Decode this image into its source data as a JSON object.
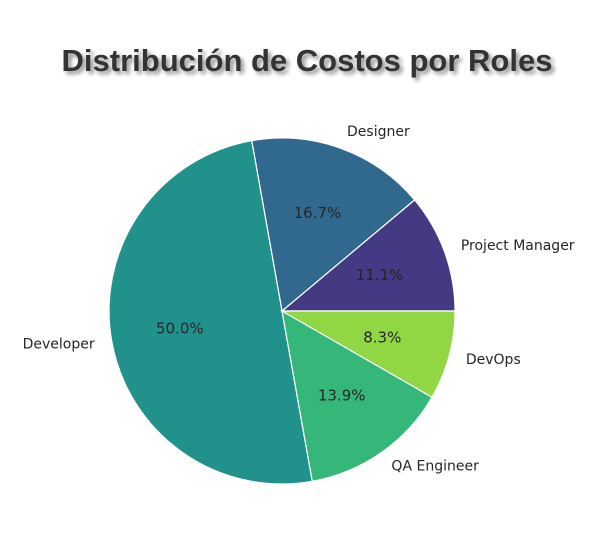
{
  "chart_data": {
    "type": "pie",
    "title": "Distribución de Costos por Roles",
    "categories": [
      "Project Manager",
      "Designer",
      "Developer",
      "QA Engineer",
      "DevOps"
    ],
    "values": [
      11.1,
      16.7,
      50.0,
      13.9,
      8.3
    ],
    "value_labels": [
      "11.1%",
      "16.7%",
      "50.0%",
      "13.9%",
      "8.3%"
    ],
    "colors": [
      "#443983",
      "#31688e",
      "#21918c",
      "#35b779",
      "#90d743"
    ]
  }
}
